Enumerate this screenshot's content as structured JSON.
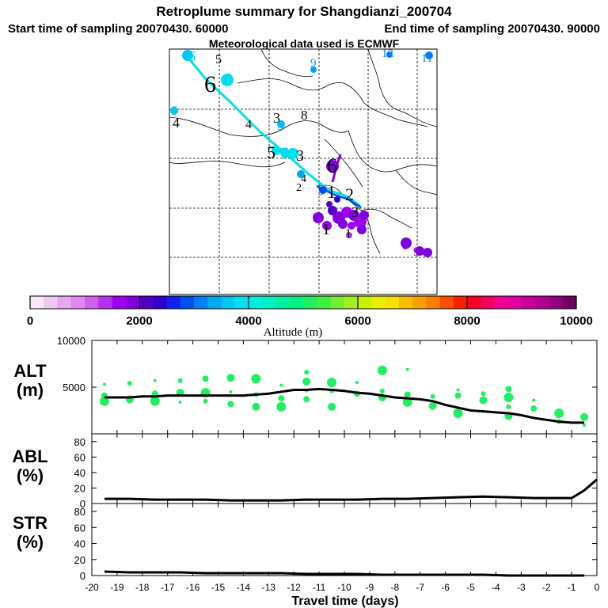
{
  "header": {
    "title": "Retroplume summary for Shangdianzi_200704",
    "start_label": "Start time of sampling 20070430. 60000",
    "end_label": "End time of sampling 20070430. 90000",
    "met_label": "Meteorological data used is ECMWF"
  },
  "colorbar": {
    "min": 0,
    "max": 10000,
    "ticks": [
      "0",
      "2000",
      "4000",
      "6000",
      "8000",
      "10000"
    ],
    "label": "Altitude (m)",
    "colors": [
      "#f8e8f8",
      "#f0c8f0",
      "#e8a8f0",
      "#e088f0",
      "#d060f0",
      "#b830f0",
      "#a000f0",
      "#8000e0",
      "#5000c0",
      "#3000d0",
      "#1020f0",
      "#0050f0",
      "#0080f0",
      "#00a8f0",
      "#00c8f0",
      "#00e0f0",
      "#00f0e0",
      "#00f0c0",
      "#00f0a0",
      "#00f080",
      "#20f060",
      "#40f040",
      "#70f030",
      "#a0f020",
      "#c8f000",
      "#e8f000",
      "#f8e000",
      "#f8c000",
      "#f8a000",
      "#f88000",
      "#f85000",
      "#f82000",
      "#f80020",
      "#f00060",
      "#f00090",
      "#e000a0",
      "#c800a0",
      "#b00090",
      "#900080",
      "#700060"
    ]
  },
  "map": {
    "labels": [
      {
        "t": "6",
        "color": "#00c8f0"
      },
      {
        "t": "5",
        "color": "#000000"
      },
      {
        "t": "9",
        "color": "#00a8f0"
      },
      {
        "t": "12",
        "color": "#0080f0"
      },
      {
        "t": "11",
        "color": "#0080f0"
      },
      {
        "t": "6",
        "color": "#000000"
      },
      {
        "t": "6",
        "color": "#00c8f0"
      },
      {
        "t": "5",
        "color": "#00c8f0"
      },
      {
        "t": "4",
        "color": "#000000"
      },
      {
        "t": "4",
        "color": "#000000"
      },
      {
        "t": "3",
        "color": "#000000"
      },
      {
        "t": "3",
        "color": "#00a8f0"
      },
      {
        "t": "8",
        "color": "#000000"
      },
      {
        "t": "5",
        "color": "#000000"
      },
      {
        "t": "5",
        "color": "#00c8f0"
      },
      {
        "t": "3",
        "color": "#000000"
      },
      {
        "t": "6",
        "color": "#000000"
      },
      {
        "t": "4",
        "color": "#000000"
      },
      {
        "t": "2",
        "color": "#000000"
      },
      {
        "t": "3",
        "color": "#0050f0"
      },
      {
        "t": "1",
        "color": "#000000"
      },
      {
        "t": "2",
        "color": "#000000"
      },
      {
        "t": "3",
        "color": "#000000"
      },
      {
        "t": "1",
        "color": "#000000"
      },
      {
        "t": "1",
        "color": "#000000"
      },
      {
        "t": "8",
        "color": "#8000e0"
      },
      {
        "t": "9",
        "color": "#8000e0"
      }
    ]
  },
  "chart_data": [
    {
      "type": "scatter+line",
      "panel": "ALT",
      "ylabel": "ALT\n(m)",
      "ylim": [
        0,
        10000
      ],
      "yticks": [
        5000,
        10000
      ],
      "xlim": [
        -20,
        0
      ],
      "x": [
        -19.5,
        -19,
        -18.5,
        -18,
        -17.5,
        -17,
        -16.5,
        -16,
        -15.5,
        -15,
        -14.5,
        -14,
        -13.5,
        -13,
        -12.5,
        -12,
        -11.5,
        -11,
        -10.5,
        -10,
        -9.5,
        -9,
        -8.5,
        -8,
        -7.5,
        -7,
        -6.5,
        -6,
        -5.5,
        -5,
        -4.5,
        -4,
        -3.5,
        -3,
        -2.5,
        -2,
        -1.5,
        -1,
        -0.5
      ],
      "mean": [
        3900,
        3900,
        3900,
        4000,
        4000,
        4100,
        4100,
        4100,
        4100,
        4100,
        4100,
        4100,
        4200,
        4300,
        4500,
        4700,
        4700,
        4800,
        4700,
        4600,
        4400,
        4300,
        4100,
        3900,
        3800,
        3700,
        3500,
        3100,
        2800,
        2500,
        2400,
        2300,
        2200,
        2000,
        1700,
        1500,
        1300,
        1200,
        1200
      ],
      "clusters": [
        {
          "x": -19.5,
          "y": 5300
        },
        {
          "x": -19.5,
          "y": 4100
        },
        {
          "x": -19.5,
          "y": 3500
        },
        {
          "x": -18.5,
          "y": 5400
        },
        {
          "x": -18.5,
          "y": 3700
        },
        {
          "x": -17.5,
          "y": 5700
        },
        {
          "x": -17.5,
          "y": 4300
        },
        {
          "x": -17.5,
          "y": 3500
        },
        {
          "x": -16.5,
          "y": 5700
        },
        {
          "x": -16.5,
          "y": 4400
        },
        {
          "x": -16.5,
          "y": 3400
        },
        {
          "x": -15.5,
          "y": 5900
        },
        {
          "x": -15.5,
          "y": 4400
        },
        {
          "x": -15.5,
          "y": 3500
        },
        {
          "x": -14.5,
          "y": 6000
        },
        {
          "x": -14.5,
          "y": 4500
        },
        {
          "x": -14.5,
          "y": 3200
        },
        {
          "x": -13.5,
          "y": 5900
        },
        {
          "x": -13.5,
          "y": 4200
        },
        {
          "x": -13.5,
          "y": 2900
        },
        {
          "x": -12.5,
          "y": 5200
        },
        {
          "x": -12.5,
          "y": 3800
        },
        {
          "x": -12.5,
          "y": 2900
        },
        {
          "x": -11.5,
          "y": 6600
        },
        {
          "x": -11.5,
          "y": 5600
        },
        {
          "x": -11.5,
          "y": 4600
        },
        {
          "x": -11.5,
          "y": 3700
        },
        {
          "x": -10.5,
          "y": 5500
        },
        {
          "x": -10.5,
          "y": 4600
        },
        {
          "x": -10.5,
          "y": 2900
        },
        {
          "x": -9.5,
          "y": 5500
        },
        {
          "x": -9.5,
          "y": 4300
        },
        {
          "x": -8.5,
          "y": 6800
        },
        {
          "x": -8.5,
          "y": 4600
        },
        {
          "x": -8.5,
          "y": 3900
        },
        {
          "x": -7.5,
          "y": 6900
        },
        {
          "x": -7.5,
          "y": 4200
        },
        {
          "x": -7.5,
          "y": 3400
        },
        {
          "x": -6.5,
          "y": 4000
        },
        {
          "x": -6.5,
          "y": 3000
        },
        {
          "x": -5.5,
          "y": 4700
        },
        {
          "x": -5.5,
          "y": 4100
        },
        {
          "x": -5.5,
          "y": 2200
        },
        {
          "x": -4.5,
          "y": 4300
        },
        {
          "x": -4.5,
          "y": 3600
        },
        {
          "x": -4.5,
          "y": 2400
        },
        {
          "x": -3.5,
          "y": 4800
        },
        {
          "x": -3.5,
          "y": 3900
        },
        {
          "x": -3.5,
          "y": 2900
        },
        {
          "x": -3.5,
          "y": 1900
        },
        {
          "x": -2.5,
          "y": 3600
        },
        {
          "x": -2.5,
          "y": 2700
        },
        {
          "x": -1.5,
          "y": 2200
        },
        {
          "x": -1.5,
          "y": 1300
        },
        {
          "x": -0.5,
          "y": 1800
        },
        {
          "x": -0.5,
          "y": 900
        }
      ]
    },
    {
      "type": "line",
      "panel": "ABL",
      "ylabel": "ABL\n(%)",
      "ylim": [
        0,
        90
      ],
      "yticks": [
        0,
        20,
        40,
        60,
        80
      ],
      "x": [
        -19.5,
        -18.5,
        -17.5,
        -16.5,
        -15.5,
        -14.5,
        -13.5,
        -12.5,
        -11.5,
        -10.5,
        -9.5,
        -8.5,
        -7.5,
        -6.5,
        -5.5,
        -4.5,
        -3.5,
        -2.5,
        -1.5,
        -1,
        -0.5,
        0
      ],
      "values": [
        6,
        6,
        5,
        5,
        5,
        4,
        4,
        4,
        5,
        5,
        5,
        6,
        6,
        7,
        8,
        9,
        8,
        7,
        7,
        7,
        17,
        31
      ]
    },
    {
      "type": "line",
      "panel": "STR",
      "ylabel": "STR\n(%)",
      "ylim": [
        0,
        90
      ],
      "yticks": [
        0,
        20,
        40,
        60,
        80
      ],
      "x": [
        -19.5,
        -18.5,
        -17.5,
        -16.5,
        -15.5,
        -14.5,
        -13.5,
        -12.5,
        -11.5,
        -10.5,
        -9.5,
        -8.5,
        -7.5,
        -6.5,
        -5.5,
        -4.5,
        -3.5,
        -2.5,
        -1.5,
        -0.5
      ],
      "values": [
        5,
        4,
        4,
        4,
        3,
        3,
        3,
        3,
        2,
        2,
        2,
        1,
        1,
        1,
        1,
        1,
        0,
        0,
        0,
        0
      ]
    }
  ],
  "xaxis": {
    "label": "Travel time (days)",
    "ticks": [
      "-20",
      "-19",
      "-18",
      "-17",
      "-16",
      "-15",
      "-14",
      "-13",
      "-12",
      "-11",
      "-10",
      "-9",
      "-8",
      "-7",
      "-6",
      "-5",
      "-4",
      "-3",
      "-2",
      "-1",
      "0"
    ]
  }
}
